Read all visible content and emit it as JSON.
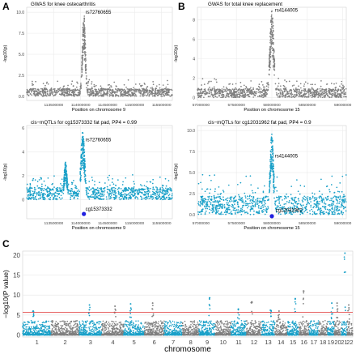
{
  "panel_labels": [
    "A",
    "B",
    "C"
  ],
  "colors": {
    "gray": "#7f7f7f",
    "blue": "#1aa0c8",
    "dark_blue": "#2020e0",
    "threshold": "#e34a4a",
    "grid": "#ebebeb"
  },
  "chart_data": [
    {
      "type": "scatter",
      "panel": "A",
      "title": "GWAS for knee osteoarthritis",
      "xlabel": "Position on chromosome 9",
      "ylabel": "-log10(p)",
      "xlim": [
        113000000,
        115700000
      ],
      "ylim": [
        -0.5,
        10.6
      ],
      "xticks": [
        113500000,
        114000000,
        114500000,
        115000000,
        115500000
      ],
      "xtick_labels": [
        "113500000",
        "114000000",
        "114500000",
        "115000000",
        "115500000"
      ],
      "yticks": [
        0.0,
        2.5,
        5.0,
        7.5,
        10.0
      ],
      "ytick_labels": [
        "0.0",
        "2.5",
        "5.0",
        "7.5",
        "10.0"
      ],
      "color": "gray",
      "annotations": [
        {
          "text": "rs72760655",
          "x": 114060000,
          "y": 10.0
        }
      ],
      "peaks": [
        {
          "center": 114060000,
          "height": 10.0,
          "width": 32000
        }
      ],
      "baseline": 0.9
    },
    {
      "type": "scatter",
      "panel": "B",
      "title": "GWAS for total knee replacement",
      "xlabel": "Position on chromosome 15",
      "ylabel": "-log10(p)",
      "xlim": [
        56950000,
        59050000
      ],
      "ylim": [
        -0.3,
        9.3
      ],
      "xticks": [
        57000000,
        57500000,
        58000000,
        58500000,
        59000000
      ],
      "xtick_labels": [
        "57000000",
        "57500000",
        "58000000",
        "58500000",
        "59000000"
      ],
      "yticks": [
        0,
        2,
        4,
        6,
        8
      ],
      "ytick_labels": [
        "0",
        "2",
        "4",
        "6",
        "8"
      ],
      "color": "gray",
      "annotations": [
        {
          "text": "rs4144005",
          "x": 58020000,
          "y": 9.0
        }
      ],
      "peaks": [
        {
          "center": 58000000,
          "height": 9.0,
          "width": 32000
        }
      ],
      "baseline": 0.9
    },
    {
      "type": "scatter",
      "panel": "A-lower",
      "title": "cis−mQTLs for cg15373332 fat pad, PP4 = 0.99",
      "xlabel": "Position on chromosome 9",
      "ylabel": "-log10(p)",
      "xlim": [
        113000000,
        115700000
      ],
      "ylim": [
        -1.6,
        6.2
      ],
      "xticks": [
        113500000,
        114000000,
        114500000,
        115000000,
        115500000
      ],
      "xtick_labels": [
        "113500000",
        "114000000",
        "114500000",
        "115000000",
        "115500000"
      ],
      "yticks": [
        0,
        2,
        4,
        6
      ],
      "ytick_labels": [
        "0",
        "2",
        "4",
        "6"
      ],
      "color": "blue",
      "annotations": [
        {
          "text": "rs72760655",
          "x": 114060000,
          "y": 5.0
        },
        {
          "text": "cg15373332",
          "x": 114060000,
          "y": -0.8
        }
      ],
      "cpg_marker": {
        "x": 114060000,
        "y": -1.2
      },
      "peaks": [
        {
          "center": 114040000,
          "height": 5.8,
          "width": 40000
        },
        {
          "center": 113720000,
          "height": 3.2,
          "width": 30000
        }
      ],
      "baseline": 1.0
    },
    {
      "type": "scatter",
      "panel": "B-lower",
      "title": "cis−mQTLs for cg12031962 fat pad, PP4 = 0.9",
      "xlabel": "Position on chromosome 15",
      "ylabel": "-log10(p)",
      "xlim": [
        56950000,
        59050000
      ],
      "ylim": [
        -0.5,
        10.6
      ],
      "xticks": [
        57000000,
        57500000,
        58000000,
        58500000,
        59000000
      ],
      "xtick_labels": [
        "57000000",
        "57500000",
        "58000000",
        "58500000",
        "59000000"
      ],
      "yticks": [
        0.0,
        2.5,
        5.0,
        7.5,
        10.0
      ],
      "ytick_labels": [
        "0.0",
        "2.5",
        "5.0",
        "7.5",
        "10.0"
      ],
      "color": "blue",
      "annotations": [
        {
          "text": "rs4144005",
          "x": 58020000,
          "y": 7.0
        },
        {
          "text": "cg12031962",
          "x": 58030000,
          "y": 0.5
        }
      ],
      "cpg_marker": {
        "x": 58000000,
        "y": -0.2
      },
      "peaks": [
        {
          "center": 58000000,
          "height": 10.0,
          "width": 28000
        }
      ],
      "baseline": 2.2
    },
    {
      "type": "scatter",
      "panel": "C",
      "subtype": "manhattan",
      "xlabel": "chromosome",
      "ylabel": "−log10(P value)",
      "ylim": [
        -0.5,
        21
      ],
      "yticks": [
        0,
        5,
        10,
        15,
        20
      ],
      "ytick_labels": [
        "0",
        "5",
        "10",
        "15",
        "20"
      ],
      "threshold": 5.7,
      "chromosomes": [
        "1",
        "2",
        "3",
        "4",
        "5",
        "6",
        "7",
        "8",
        "9",
        "10",
        "11",
        "12",
        "13",
        "14",
        "15",
        "16",
        "17",
        "18",
        "19",
        "20",
        "21",
        "22"
      ],
      "chrom_labels": [
        "1",
        "2",
        "3",
        "4",
        "5",
        "6",
        "7",
        "8",
        "9",
        "10",
        "11",
        "12",
        "13",
        "14",
        "15",
        "16",
        "17",
        "18",
        "19",
        "20",
        "21",
        "22"
      ],
      "chrom_lengths": [
        249,
        243,
        198,
        191,
        181,
        171,
        159,
        146,
        141,
        136,
        135,
        133,
        115,
        107,
        102,
        90,
        81,
        78,
        59,
        63,
        48,
        51
      ],
      "top_hits": [
        {
          "chrom": "1",
          "y": 6.0
        },
        {
          "chrom": "3",
          "y": 7.5
        },
        {
          "chrom": "4",
          "y": 7.2
        },
        {
          "chrom": "5",
          "y": 7.8
        },
        {
          "chrom": "6",
          "y": 8.0
        },
        {
          "chrom": "9",
          "y": 9.3
        },
        {
          "chrom": "11",
          "y": 6.5
        },
        {
          "chrom": "12",
          "y": 8.3
        },
        {
          "chrom": "13",
          "y": 6.2
        },
        {
          "chrom": "14",
          "y": 6.0
        },
        {
          "chrom": "15",
          "y": 9.1
        },
        {
          "chrom": "16",
          "y": 11.0
        },
        {
          "chrom": "19",
          "y": 8.0
        },
        {
          "chrom": "20",
          "y": 8.0
        },
        {
          "chrom": "21",
          "y": 20.5
        },
        {
          "chrom": "22",
          "y": 7.5
        }
      ]
    }
  ]
}
